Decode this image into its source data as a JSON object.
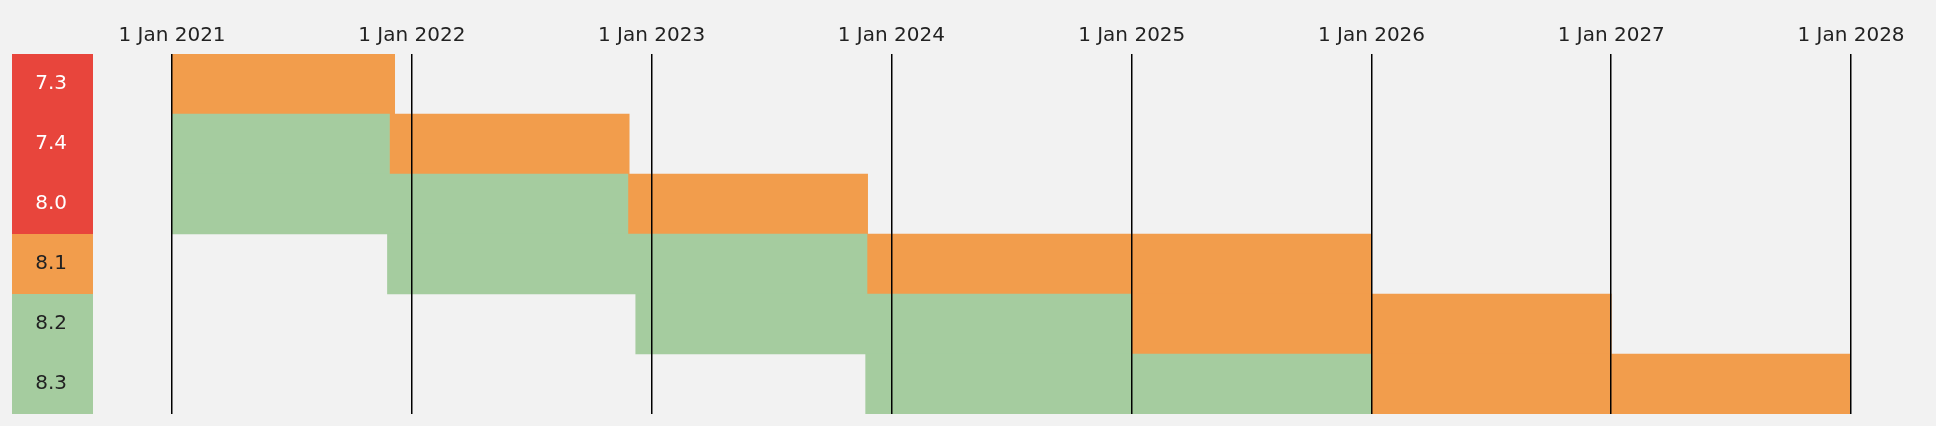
{
  "chart_data": {
    "type": "bar",
    "orientation": "horizontal",
    "categories": [
      "7.3",
      "7.4",
      "8.0",
      "8.1",
      "8.2",
      "8.3"
    ],
    "series": [
      {
        "color": "#a5cc9f",
        "base": [
          null,
          18628,
          18628,
          18956,
          19334,
          19684
        ],
        "values": [
          null,
          331,
          694,
          730,
          755,
          770
        ]
      },
      {
        "color": "#f29d4c",
        "base": [
          18628,
          18959,
          19322,
          19686,
          20089,
          20454
        ],
        "values": [
          339,
          365,
          365,
          768,
          730,
          730
        ]
      }
    ],
    "xlim": [
      "2021-01-01",
      "2028-01-01"
    ],
    "xticks": [
      {
        "value": "2021-01-01",
        "label": "1 Jan 2021"
      },
      {
        "value": "2022-01-01",
        "label": "1 Jan 2022"
      },
      {
        "value": "2023-01-01",
        "label": "1 Jan 2023"
      },
      {
        "value": "2024-01-01",
        "label": "1 Jan 2024"
      },
      {
        "value": "2025-01-01",
        "label": "1 Jan 2025"
      },
      {
        "value": "2026-01-01",
        "label": "1 Jan 2026"
      },
      {
        "value": "2027-01-01",
        "label": "1 Jan 2027"
      },
      {
        "value": "2028-01-01",
        "label": "1 Jan 2028"
      }
    ],
    "grid": "x",
    "legend": false
  }
}
